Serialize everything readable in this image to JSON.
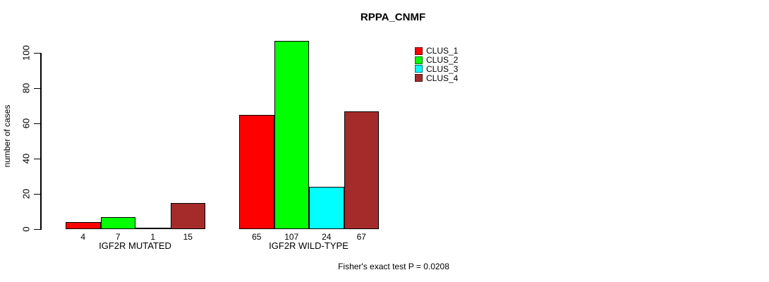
{
  "page": {
    "background_color": "#FFFFFF",
    "text_color": "#000000"
  },
  "chart_data": {
    "type": "bar",
    "title": "RPPA_CNMF",
    "xlabel": "",
    "ylabel": "number of cases",
    "categories": [
      "IGF2R MUTATED",
      "IGF2R WILD-TYPE"
    ],
    "series": [
      {
        "name": "CLUS_1",
        "color": "#FF0000",
        "values": [
          4,
          65
        ]
      },
      {
        "name": "CLUS_2",
        "color": "#00FF00",
        "values": [
          7,
          107
        ]
      },
      {
        "name": "CLUS_3",
        "color": "#00FFFF",
        "values": [
          1,
          24
        ]
      },
      {
        "name": "CLUS_4",
        "color": "#A52A2A",
        "values": [
          15,
          67
        ]
      }
    ],
    "yticks": [
      0,
      20,
      40,
      60,
      80,
      100
    ],
    "ylim": [
      0,
      110
    ],
    "grid": false,
    "show_bar_value_labels": true,
    "legend_position": "top-right",
    "legend_entries": [
      "CLUS_1",
      "CLUS_2",
      "CLUS_3",
      "CLUS_4"
    ],
    "annotation": "Fisher's exact test P = 0.0208",
    "bar_border_color": "#000000",
    "axis_color": "#000000"
  }
}
